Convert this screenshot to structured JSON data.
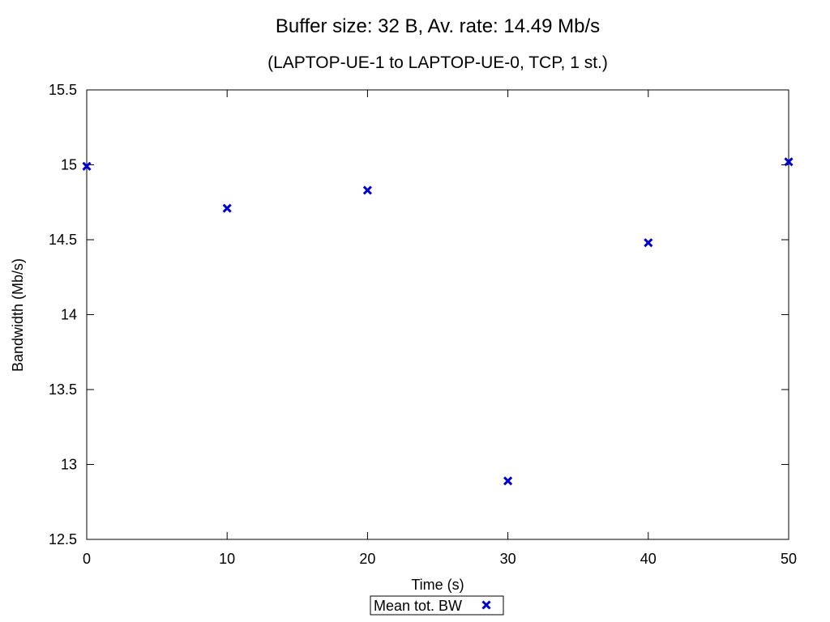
{
  "chart_data": {
    "type": "scatter",
    "title": "Buffer size: 32 B, Av. rate: 14.49 Mb/s",
    "subtitle": "(LAPTOP-UE-1 to LAPTOP-UE-0, TCP, 1 st.)",
    "xlabel": "Time (s)",
    "ylabel": "Bandwidth (Mb/s)",
    "xlim": [
      0,
      50
    ],
    "ylim": [
      12.5,
      15.5
    ],
    "xticks": [
      0,
      10,
      20,
      30,
      40,
      50
    ],
    "xtick_labels": [
      "0",
      "10",
      "20",
      "30",
      "40",
      "50"
    ],
    "yticks": [
      12.5,
      13,
      13.5,
      14,
      14.5,
      15,
      15.5
    ],
    "ytick_labels": [
      "12.5",
      "13",
      "13.5",
      "14",
      "14.5",
      "15",
      "15.5"
    ],
    "grid": false,
    "legend_position": "bottom-center",
    "series": [
      {
        "name": "Mean tot. BW",
        "color": "#0000cc",
        "marker": "x",
        "x": [
          0,
          10,
          20,
          30,
          40,
          50
        ],
        "y": [
          14.99,
          14.71,
          14.83,
          12.89,
          14.48,
          15.02
        ]
      }
    ]
  }
}
